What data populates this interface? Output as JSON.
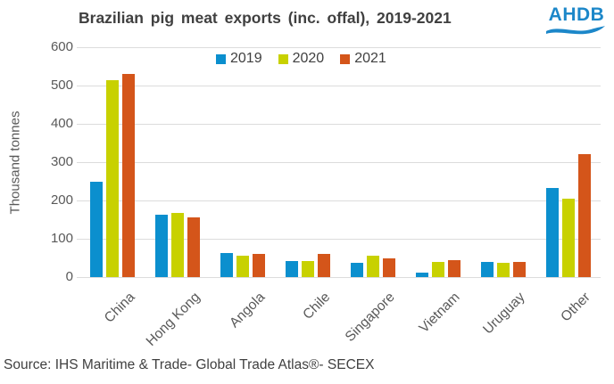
{
  "title": "Brazilian pig meat exports (inc. offal), 2019-2021",
  "logo": {
    "text": "AHDB",
    "color": "#1C87C9"
  },
  "source": "Source: IHS Maritime & Trade- Global Trade Atlas®- SECEX",
  "colors": {
    "series_2019": "#0B8FCE",
    "series_2020": "#C8D100",
    "series_2021": "#D4551A",
    "gridline": "#DCDCDC",
    "axis_text": "#595959",
    "title_text": "#404040",
    "logo_blue": "#1C87C9"
  },
  "chart_data": {
    "type": "bar",
    "title": "Brazilian pig meat exports (inc. offal), 2019-2021",
    "xlabel": "",
    "ylabel": "Thousand tonnes",
    "ylim": [
      0,
      600
    ],
    "ytick_interval": 100,
    "grid": true,
    "legend_position": "top-center",
    "categories": [
      "China",
      "Hong Kong",
      "Angola",
      "Chile",
      "Singapore",
      "Vietnam",
      "Uruguay",
      "Other"
    ],
    "series": [
      {
        "name": "2019",
        "color": "#0B8FCE",
        "values": [
          250,
          162,
          63,
          43,
          38,
          11,
          40,
          232
        ]
      },
      {
        "name": "2020",
        "color": "#C8D100",
        "values": [
          513,
          167,
          55,
          41,
          55,
          40,
          37,
          205
        ]
      },
      {
        "name": "2021",
        "color": "#D4551A",
        "values": [
          531,
          155,
          60,
          60,
          50,
          45,
          40,
          320
        ]
      }
    ]
  }
}
